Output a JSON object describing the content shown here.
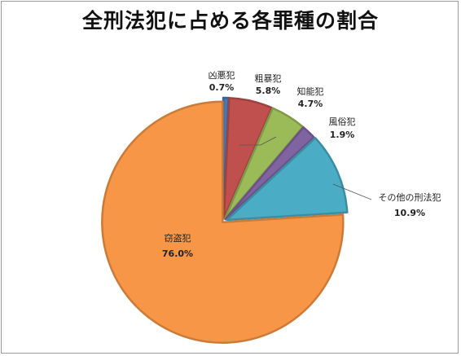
{
  "chart_data": {
    "type": "pie",
    "title": "全刑法犯に占める各罪種の割合",
    "slices": [
      {
        "label": "凶悪犯",
        "value": 0.7,
        "value_label": "0.7%",
        "color": "#4a77b4"
      },
      {
        "label": "粗暴犯",
        "value": 5.8,
        "value_label": "5.8%",
        "color": "#c0504d"
      },
      {
        "label": "知能犯",
        "value": 4.7,
        "value_label": "4.7%",
        "color": "#9bbb59"
      },
      {
        "label": "風俗犯",
        "value": 1.9,
        "value_label": "1.9%",
        "color": "#8064a2"
      },
      {
        "label": "その他の刑法犯",
        "value": 10.9,
        "value_label": "10.9%",
        "color": "#4bacc6"
      },
      {
        "label": "窃盗犯",
        "value": 76.0,
        "value_label": "76.0%",
        "color": "#f79646"
      }
    ],
    "start_angle": "12 o'clock, clockwise",
    "exploded": true,
    "legend": "none",
    "data_labels": "category name and percentage"
  }
}
